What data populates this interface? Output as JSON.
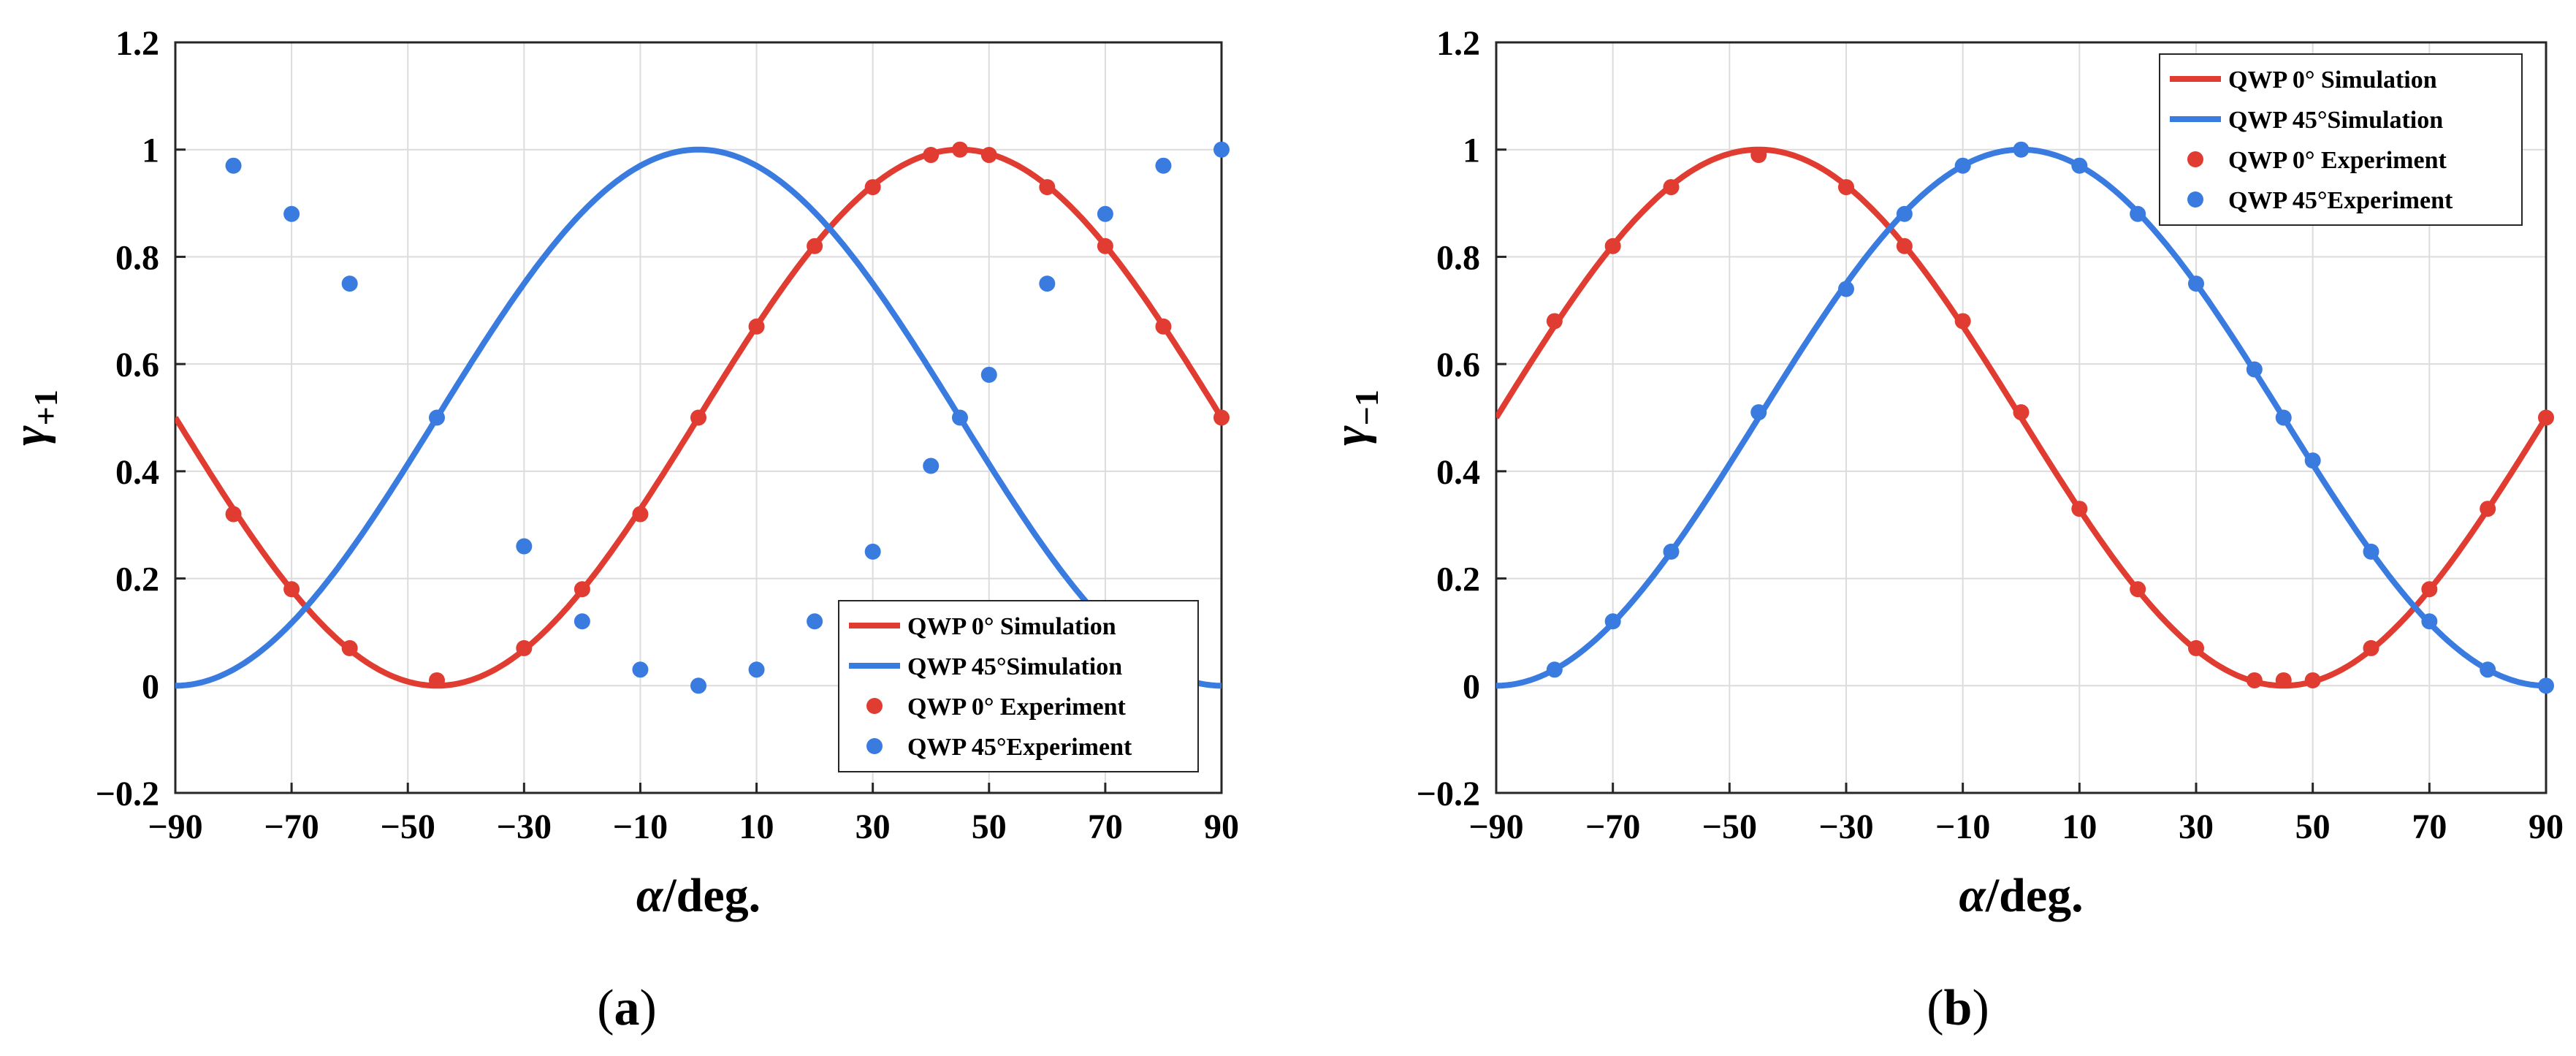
{
  "chart_data": [
    {
      "type": "line",
      "panel": "a",
      "caption": {
        "open": "(",
        "letter": "a",
        "close": ")"
      },
      "xlabel": {
        "symbol": "α",
        "unit": "/deg."
      },
      "ylabel": {
        "base": "γ",
        "subscript": "+1"
      },
      "xlim": [
        -90,
        90
      ],
      "ylim": [
        -0.2,
        1.2
      ],
      "xticks": [
        "−90",
        "−70",
        "−50",
        "−30",
        "−10",
        "10",
        "30",
        "50",
        "70",
        "90"
      ],
      "yticks": [
        "−0.2",
        "0",
        "0.2",
        "0.4",
        "0.6",
        "0.8",
        "1",
        "1.2"
      ],
      "grid": true,
      "legend_position": "bottom-right",
      "series": [
        {
          "name": "QWP 0° Simulation",
          "kind": "line",
          "color": "#e03c31",
          "formula": "(1+sin(2a))/2"
        },
        {
          "name": "QWP 45°Simulation",
          "kind": "line",
          "color": "#3a7be0",
          "formula": "(1+cos(2a))/2"
        },
        {
          "name": "QWP 0° Experiment",
          "kind": "scatter",
          "color": "#e03c31",
          "x": [
            -80,
            -70,
            -60,
            -45,
            -30,
            -20,
            -10,
            0,
            10,
            20,
            30,
            40,
            45,
            50,
            60,
            70,
            80,
            90
          ],
          "y": [
            0.32,
            0.18,
            0.07,
            0.01,
            0.07,
            0.18,
            0.32,
            0.5,
            0.67,
            0.82,
            0.93,
            0.99,
            1.0,
            0.99,
            0.93,
            0.82,
            0.67,
            0.5
          ]
        },
        {
          "name": "QWP 45°Experiment",
          "kind": "scatter",
          "color": "#3a7be0",
          "x": [
            -80,
            -70,
            -60,
            -45,
            -30,
            -20,
            -10,
            0,
            10,
            20,
            30,
            40,
            45,
            50,
            60,
            70,
            80,
            90
          ],
          "y": [
            0.97,
            0.88,
            0.75,
            0.5,
            0.26,
            0.12,
            0.03,
            0.0,
            0.03,
            0.12,
            0.25,
            0.41,
            0.5,
            0.58,
            0.75,
            0.88,
            0.97,
            1.0
          ]
        }
      ]
    },
    {
      "type": "line",
      "panel": "b",
      "caption": {
        "open": "(",
        "letter": "b",
        "close": ")"
      },
      "xlabel": {
        "symbol": "α",
        "unit": "/deg."
      },
      "ylabel": {
        "base": "γ",
        "subscript": "−1"
      },
      "xlim": [
        -90,
        90
      ],
      "ylim": [
        -0.2,
        1.2
      ],
      "xticks": [
        "−90",
        "−70",
        "−50",
        "−30",
        "−10",
        "10",
        "30",
        "50",
        "70",
        "90"
      ],
      "yticks": [
        "−0.2",
        "0",
        "0.2",
        "0.4",
        "0.6",
        "0.8",
        "1",
        "1.2"
      ],
      "grid": true,
      "legend_position": "top-right",
      "series": [
        {
          "name": "QWP 0° Simulation",
          "kind": "line",
          "color": "#e03c31",
          "formula": "(1-sin(2a))/2"
        },
        {
          "name": "QWP 45°Simulation",
          "kind": "line",
          "color": "#3a7be0",
          "formula": "(1+cos(2a))/2"
        },
        {
          "name": "QWP 0° Experiment",
          "kind": "scatter",
          "color": "#e03c31",
          "x": [
            -80,
            -70,
            -60,
            -45,
            -30,
            -20,
            -10,
            0,
            10,
            20,
            30,
            40,
            45,
            50,
            60,
            70,
            80,
            90
          ],
          "y": [
            0.68,
            0.82,
            0.93,
            0.99,
            0.93,
            0.82,
            0.68,
            0.51,
            0.33,
            0.18,
            0.07,
            0.01,
            0.01,
            0.01,
            0.07,
            0.18,
            0.33,
            0.5
          ]
        },
        {
          "name": "QWP 45°Experiment",
          "kind": "scatter",
          "color": "#3a7be0",
          "x": [
            -80,
            -70,
            -60,
            -45,
            -30,
            -20,
            -10,
            0,
            10,
            20,
            30,
            40,
            45,
            50,
            60,
            70,
            80,
            90
          ],
          "y": [
            0.03,
            0.12,
            0.25,
            0.51,
            0.74,
            0.88,
            0.97,
            1.0,
            0.97,
            0.88,
            0.75,
            0.59,
            0.5,
            0.42,
            0.25,
            0.12,
            0.03,
            0.0
          ]
        }
      ]
    }
  ]
}
